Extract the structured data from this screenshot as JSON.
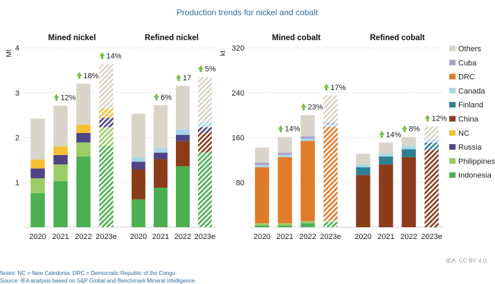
{
  "title": "Production trends for nickel and cobalt",
  "notes": "Notes: NC = New Caledonia. DRC = Democratic Republic of the Congo.",
  "source": "Source: IEA analysis based on S&P Global and Benchmark Mineral Intelligence.",
  "credit": "IEA. CC BY 4.0.",
  "colors": {
    "Indonesia": "#4caf50",
    "Philippines": "#9ccc65",
    "Russia": "#4e4486",
    "NC": "#f7c033",
    "China": "#8b3c1a",
    "Finland": "#2e7f93",
    "Canada": "#a8d8e6",
    "DRC": "#e07b2a",
    "Cuba": "#a7a2cc",
    "Others": "#d9d5c8",
    "arrow": "#7cbf4a"
  },
  "legend": {
    "items": [
      "Others",
      "Cuba",
      "DRC",
      "Canada",
      "Finland",
      "China",
      "NC",
      "Russia",
      "Philippines",
      "Indonesia"
    ]
  },
  "chart_data": [
    {
      "type": "bar",
      "stacked": true,
      "title": "Mined nickel",
      "ylabel": "Mt",
      "ylim": [
        0,
        4
      ],
      "yticks": [
        1,
        2,
        3,
        4
      ],
      "categories": [
        "2020",
        "2021",
        "2022",
        "2023e"
      ],
      "hatched_category": "2023e",
      "series": [
        {
          "name": "Indonesia",
          "values": [
            0.76,
            1.03,
            1.58,
            1.82
          ]
        },
        {
          "name": "Philippines",
          "values": [
            0.33,
            0.37,
            0.31,
            0.41
          ]
        },
        {
          "name": "Russia",
          "values": [
            0.22,
            0.21,
            0.21,
            0.21
          ]
        },
        {
          "name": "NC",
          "values": [
            0.2,
            0.19,
            0.19,
            0.21
          ]
        },
        {
          "name": "Others",
          "values": [
            0.91,
            0.91,
            0.91,
            0.99
          ]
        }
      ],
      "annotations": [
        {
          "category": "2021",
          "label": "12%"
        },
        {
          "category": "2022",
          "label": "18%"
        },
        {
          "category": "2023e",
          "label": "14%"
        }
      ]
    },
    {
      "type": "bar",
      "stacked": true,
      "title": "Refined nickel",
      "ylim": [
        0,
        4
      ],
      "categories": [
        "2020",
        "2021",
        "2022",
        "2023e"
      ],
      "hatched_category": "2023e",
      "series": [
        {
          "name": "Indonesia",
          "values": [
            0.62,
            0.88,
            1.36,
            1.67
          ]
        },
        {
          "name": "China",
          "values": [
            0.67,
            0.64,
            0.56,
            0.43
          ]
        },
        {
          "name": "Russia",
          "values": [
            0.17,
            0.14,
            0.14,
            0.13
          ]
        },
        {
          "name": "Canada",
          "values": [
            0.1,
            0.1,
            0.12,
            0.12
          ]
        },
        {
          "name": "Others",
          "values": [
            0.97,
            0.96,
            0.97,
            1.0
          ]
        }
      ],
      "annotations": [
        {
          "category": "2021",
          "label": "6%"
        },
        {
          "category": "2022",
          "label": "17"
        },
        {
          "category": "2023e",
          "label": "5%"
        }
      ]
    },
    {
      "type": "bar",
      "stacked": true,
      "title": "Mined cobalt",
      "ylabel": "kt",
      "ylim": [
        0,
        320
      ],
      "yticks": [
        80,
        160,
        240,
        320
      ],
      "categories": [
        "2020",
        "2021",
        "2022",
        "2023e"
      ],
      "hatched_category": "2023e",
      "series": [
        {
          "name": "Indonesia",
          "values": [
            3,
            3,
            7,
            9
          ]
        },
        {
          "name": "Philippines",
          "values": [
            4,
            4,
            4,
            4
          ]
        },
        {
          "name": "DRC",
          "values": [
            100,
            118,
            143,
            166
          ]
        },
        {
          "name": "Canada",
          "values": [
            4,
            4,
            4,
            4
          ]
        },
        {
          "name": "Cuba",
          "values": [
            4,
            4,
            4,
            4
          ]
        },
        {
          "name": "Others",
          "values": [
            27,
            28,
            38,
            48
          ]
        }
      ],
      "annotations": [
        {
          "category": "2021",
          "label": "14%"
        },
        {
          "category": "2022",
          "label": "23%"
        },
        {
          "category": "2023e",
          "label": "17%"
        }
      ]
    },
    {
      "type": "bar",
      "stacked": true,
      "title": "Refined cobalt",
      "ylim": [
        0,
        320
      ],
      "categories": [
        "2020",
        "2021",
        "2022",
        "2023e"
      ],
      "hatched_category": "2023e",
      "series": [
        {
          "name": "China",
          "values": [
            93,
            112,
            125,
            138
          ]
        },
        {
          "name": "Finland",
          "values": [
            14,
            14,
            14,
            13
          ]
        },
        {
          "name": "Canada",
          "values": [
            5,
            6,
            6,
            6
          ]
        },
        {
          "name": "Others",
          "values": [
            19,
            19,
            16,
            23
          ]
        }
      ],
      "annotations": [
        {
          "category": "2021",
          "label": "14%"
        },
        {
          "category": "2022",
          "label": "8%"
        },
        {
          "category": "2023e",
          "label": "12%"
        }
      ]
    }
  ]
}
